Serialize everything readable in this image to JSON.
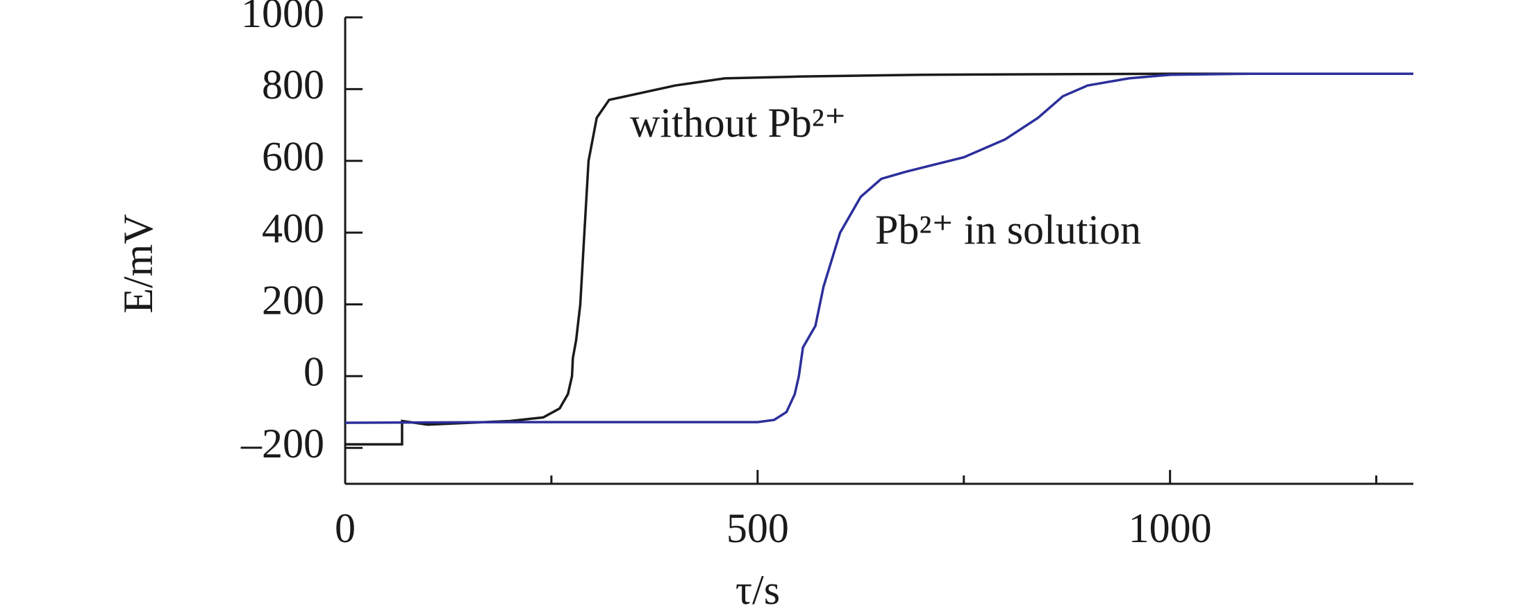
{
  "chart_data": {
    "type": "line",
    "xlabel": "τ/s",
    "ylabel": "E/mV",
    "xlim": [
      0,
      1295
    ],
    "ylim": [
      -300,
      1000
    ],
    "xticks": [
      0,
      500,
      1000
    ],
    "xminorticks": [
      250,
      750,
      1250
    ],
    "yticks": [
      {
        "value": -200,
        "label": "–200"
      },
      0,
      200,
      400,
      600,
      800,
      1000
    ],
    "grid": false,
    "series": [
      {
        "name": "without Pb²⁺",
        "color": "#1a1a1a",
        "x": [
          0,
          69,
          69,
          100,
          150,
          200,
          240,
          260,
          270,
          275,
          276,
          280,
          285,
          290,
          295,
          305,
          320,
          360,
          400,
          460,
          550,
          700,
          1000,
          1295
        ],
        "values": [
          -190,
          -190,
          -125,
          -135,
          -130,
          -125,
          -115,
          -90,
          -50,
          0,
          50,
          100,
          200,
          400,
          600,
          720,
          770,
          790,
          810,
          830,
          835,
          840,
          843,
          843
        ]
      },
      {
        "name": "Pb²⁺ in solution",
        "color": "#2b2f9a",
        "x": [
          0,
          200,
          500,
          520,
          535,
          545,
          550,
          555,
          565,
          570,
          580,
          600,
          625,
          650,
          680,
          750,
          800,
          840,
          870,
          900,
          950,
          1000,
          1100,
          1295
        ],
        "values": [
          -130,
          -128,
          -128,
          -122,
          -100,
          -50,
          0,
          80,
          120,
          140,
          250,
          400,
          500,
          550,
          570,
          610,
          660,
          720,
          780,
          810,
          830,
          840,
          843,
          843
        ]
      }
    ]
  }
}
